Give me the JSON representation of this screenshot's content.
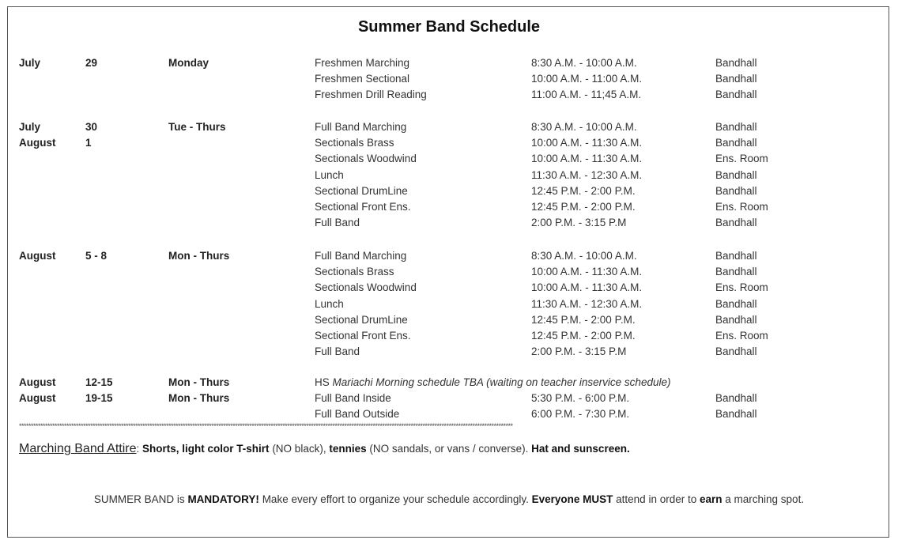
{
  "title": "Summer Band Schedule",
  "groups": [
    {
      "rows": [
        {
          "month": "July",
          "day": "29",
          "weekday": "Monday",
          "activity": "Freshmen Marching",
          "time": "8:30 A.M. - 10:00 A.M.",
          "location": "Bandhall"
        },
        {
          "activity": "Freshmen Sectional",
          "time": "10:00 A.M. - 11:00 A.M.",
          "location": "Bandhall"
        },
        {
          "activity": "Freshmen Drill Reading",
          "time": "11:00 A.M. - 11;45 A.M.",
          "location": "Bandhall"
        }
      ]
    },
    {
      "rows": [
        {
          "month": "July",
          "day": "30",
          "weekday": "Tue - Thurs",
          "activity": "Full Band Marching",
          "time": "8:30 A.M. - 10:00 A.M.",
          "location": "Bandhall"
        },
        {
          "month": "August",
          "day": "1",
          "activity": "Sectionals Brass",
          "time": "10:00 A.M. - 11:30 A.M.",
          "location": "Bandhall"
        },
        {
          "activity": "Sectionals Woodwind",
          "time": "10:00 A.M. - 11:30 A.M.",
          "location": "Ens. Room"
        },
        {
          "activity": "Lunch",
          "time": "11:30 A.M. - 12:30 A.M.",
          "location": "Bandhall"
        },
        {
          "activity": "Sectional DrumLine",
          "time": "12:45 P.M. - 2:00 P.M.",
          "location": "Bandhall"
        },
        {
          "activity": "Sectional Front Ens.",
          "time": "12:45 P.M. - 2:00 P.M.",
          "location": "Ens. Room"
        },
        {
          "activity": "Full Band",
          "time": "2:00 P.M. - 3:15 P.M",
          "location": "Bandhall"
        }
      ]
    },
    {
      "rows": [
        {
          "month": "August",
          "day": "5 - 8",
          "weekday": "Mon - Thurs",
          "activity": "Full Band Marching",
          "time": "8:30 A.M. - 10:00 A.M.",
          "location": "Bandhall"
        },
        {
          "activity": "Sectionals Brass",
          "time": "10:00 A.M. - 11:30 A.M.",
          "location": "Bandhall"
        },
        {
          "activity": "Sectionals Woodwind",
          "time": "10:00 A.M. - 11:30 A.M.",
          "location": "Ens. Room"
        },
        {
          "activity": "Lunch",
          "time": "11:30 A.M. - 12:30 A.M.",
          "location": "Bandhall"
        },
        {
          "activity": "Sectional DrumLine",
          "time": "12:45 P.M. - 2:00 P.M.",
          "location": "Bandhall"
        },
        {
          "activity": "Sectional Front Ens.",
          "time": "12:45 P.M. - 2:00 P.M.",
          "location": "Ens. Room"
        },
        {
          "activity": "Full Band",
          "time": "2:00 P.M. - 3:15 P.M",
          "location": "Bandhall"
        }
      ]
    },
    {
      "rows": [
        {
          "month": "August",
          "day": "12-15",
          "weekday": "Mon - Thurs",
          "note_prefix": "HS ",
          "note_italic": "Mariachi Morning schedule TBA (waiting on teacher inservice schedule)"
        },
        {
          "month": "August",
          "day": "19-15",
          "weekday": "Mon - Thurs",
          "activity": "Full Band Inside",
          "time": "5:30 P.M. - 6:00 P.M.",
          "location": "Bandhall"
        },
        {
          "activity": "Full Band Outside",
          "time": "6:00 P.M. - 7:30 P.M.",
          "location": "Bandhall"
        }
      ]
    }
  ],
  "separator": "****************************************************************************************************************************************************************************************************************",
  "attire": {
    "label": "Marching Band Attire",
    "segments": [
      {
        "text": ": ",
        "bold": false
      },
      {
        "text": "Shorts, light color T-shirt",
        "bold": true
      },
      {
        "text": " (NO black), ",
        "bold": false
      },
      {
        "text": "tennies",
        "bold": true
      },
      {
        "text": " (NO sandals, or vans / converse). ",
        "bold": false
      },
      {
        "text": "Hat and sunscreen.",
        "bold": true
      }
    ]
  },
  "mandatory": {
    "segments": [
      {
        "text": "SUMMER BAND is ",
        "bold": false
      },
      {
        "text": "MANDATORY!",
        "bold": true
      },
      {
        "text": " Make every effort to organize your schedule accordingly. ",
        "bold": false
      },
      {
        "text": "Everyone MUST",
        "bold": true
      },
      {
        "text": " attend in order to ",
        "bold": false
      },
      {
        "text": "earn",
        "bold": true
      },
      {
        "text": " a marching spot.",
        "bold": false
      }
    ]
  }
}
